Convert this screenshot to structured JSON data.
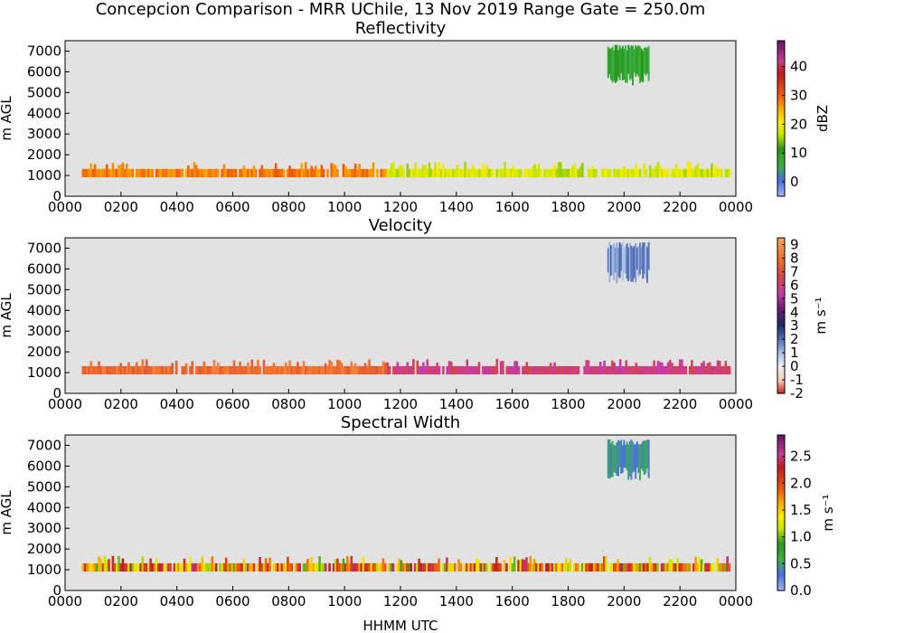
{
  "figure": {
    "title": "Concepcion Comparison - MRR UChile, 13 Nov 2019 Range Gate = 250.0m",
    "xlabel": "HHMM UTC"
  },
  "chart_data": [
    {
      "type": "heatmap",
      "title": "Reflectivity",
      "ylabel": "m AGL",
      "xticks": [
        "0000",
        "0200",
        "0400",
        "0600",
        "0800",
        "1000",
        "1200",
        "1400",
        "1600",
        "1800",
        "2000",
        "2200",
        "0000"
      ],
      "yticks": [
        "0",
        "1000",
        "2000",
        "3000",
        "4000",
        "5000",
        "6000",
        "7000"
      ],
      "ylim": [
        0,
        7500
      ],
      "colorbar": {
        "label": "dBZ",
        "ticks": [
          "0",
          "10",
          "20",
          "30",
          "40"
        ],
        "range": [
          -5,
          49
        ]
      },
      "features": [
        {
          "name": "low-level layer early",
          "x_range_hours": [
            0.6,
            11.5
          ],
          "y_range_m": [
            1000,
            1450
          ],
          "value": 28
        },
        {
          "name": "low-level layer late",
          "x_range_hours": [
            11.5,
            23.8
          ],
          "y_range_m": [
            1000,
            1450
          ],
          "value": 18
        },
        {
          "name": "upper cloud",
          "x_range_hours": [
            19.4,
            20.9
          ],
          "y_range_m": [
            5300,
            7300
          ],
          "value": 8
        }
      ]
    },
    {
      "type": "heatmap",
      "title": "Velocity",
      "ylabel": "m AGL",
      "xticks": [
        "0000",
        "0200",
        "0400",
        "0600",
        "0800",
        "1000",
        "1200",
        "1400",
        "1600",
        "1800",
        "2000",
        "2200",
        "0000"
      ],
      "yticks": [
        "0",
        "1000",
        "2000",
        "3000",
        "4000",
        "5000",
        "6000",
        "7000"
      ],
      "ylim": [
        0,
        7500
      ],
      "colorbar": {
        "label": "m s⁻¹",
        "ticks": [
          "-2",
          "-1",
          "0",
          "1",
          "2",
          "3",
          "4",
          "5",
          "6",
          "7",
          "8",
          "9"
        ],
        "range": [
          -2,
          9.5
        ]
      },
      "features": [
        {
          "name": "low-level layer early",
          "x_range_hours": [
            0.6,
            11.5
          ],
          "y_range_m": [
            1000,
            1450
          ],
          "value": 8
        },
        {
          "name": "low-level layer late",
          "x_range_hours": [
            11.5,
            23.8
          ],
          "y_range_m": [
            1000,
            1450
          ],
          "value": 6
        },
        {
          "name": "upper cloud",
          "x_range_hours": [
            19.4,
            20.9
          ],
          "y_range_m": [
            5300,
            7300
          ],
          "value": 1.5
        }
      ]
    },
    {
      "type": "heatmap",
      "title": "Spectral Width",
      "ylabel": "m AGL",
      "xticks": [
        "0000",
        "0200",
        "0400",
        "0600",
        "0800",
        "1000",
        "1200",
        "1400",
        "1600",
        "1800",
        "2000",
        "2200",
        "0000"
      ],
      "yticks": [
        "0",
        "1000",
        "2000",
        "3000",
        "4000",
        "5000",
        "6000",
        "7000"
      ],
      "ylim": [
        0,
        7500
      ],
      "colorbar": {
        "label": "m s⁻¹",
        "ticks": [
          "0.0",
          "0.5",
          "1.0",
          "1.5",
          "2.0",
          "2.5"
        ],
        "range": [
          0,
          2.9
        ]
      },
      "features": [
        {
          "name": "low-level layer",
          "x_range_hours": [
            0.6,
            23.8
          ],
          "y_range_m": [
            1000,
            1450
          ],
          "value": 1.7
        },
        {
          "name": "upper cloud",
          "x_range_hours": [
            19.4,
            20.9
          ],
          "y_range_m": [
            5300,
            7300
          ],
          "value": 0.4
        }
      ]
    }
  ]
}
